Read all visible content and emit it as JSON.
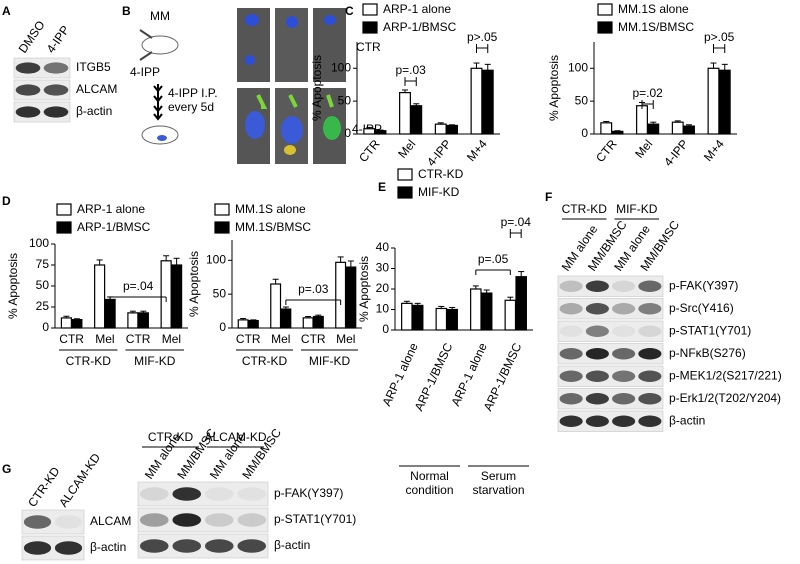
{
  "panel_labels": [
    "A",
    "B",
    "C",
    "D",
    "E",
    "F",
    "G"
  ],
  "blot_A": {
    "columns": [
      "DMSO",
      "4-IPP"
    ],
    "rows": [
      "ITGB5",
      "ALCAM",
      "β-actin"
    ]
  },
  "schematic_B": {
    "labels": [
      "MM",
      "4-IPP",
      "4-IPP I.P.",
      "every 5d"
    ],
    "rows": [
      "CTR",
      "4-IPP"
    ]
  },
  "blot_F": {
    "groups": [
      "CTR-KD",
      "MIF-KD"
    ],
    "columns": [
      "MM alone",
      "MM/BMSC",
      "MM alone",
      "MM/BMSC"
    ],
    "rows": [
      "p-FAK(Y397)",
      "p-Src(Y416)",
      "p-STAT1(Y701)",
      "p-NFκB(S276)",
      "p-MEK1/2(S217/221)",
      "p-Erk1/2(T202/Y204)",
      "β-actin"
    ]
  },
  "blot_G_left": {
    "columns": [
      "CTR-KD",
      "ALCAM-KD"
    ],
    "rows": [
      "ALCAM",
      "β-actin"
    ]
  },
  "blot_G_right": {
    "groups": [
      "CTR-KD",
      "ALCAM-KD"
    ],
    "columns": [
      "MM alone",
      "MM/BMSC",
      "MM alone",
      "MM/BMSC"
    ],
    "rows": [
      "p-FAK(Y397)",
      "p-STAT1(Y701)",
      "β-actin"
    ]
  },
  "chart_data": [
    {
      "type": "bar",
      "ylabel": "% Apoptosis",
      "categories": [
        "CTR",
        "Mel",
        "4-IPP",
        "M+4"
      ],
      "series": [
        {
          "name": "ARP-1 alone",
          "color": "#ffffff",
          "values": [
            8,
            63,
            15,
            100
          ],
          "errors": [
            2,
            4,
            2,
            8
          ]
        },
        {
          "name": "ARP-1/BMSC",
          "color": "#000000",
          "values": [
            5,
            43,
            13,
            97
          ],
          "errors": [
            1,
            3,
            1,
            9
          ]
        }
      ],
      "ylim": [
        0,
        140
      ],
      "yticks": [
        0,
        50,
        100
      ],
      "annotations": [
        "p=.03",
        "p>.05"
      ]
    },
    {
      "type": "bar",
      "ylabel": "% Apoptosis",
      "categories": [
        "CTR",
        "Mel",
        "4-IPP",
        "M+4"
      ],
      "series": [
        {
          "name": "MM.1S alone",
          "color": "#ffffff",
          "values": [
            17,
            43,
            18,
            100
          ],
          "errors": [
            2,
            5,
            2,
            8
          ]
        },
        {
          "name": "MM.1S/BMSC",
          "color": "#000000",
          "values": [
            4,
            15,
            12,
            97
          ],
          "errors": [
            1,
            3,
            2,
            9
          ]
        }
      ],
      "ylim": [
        0,
        140
      ],
      "yticks": [
        0,
        50,
        100
      ],
      "annotations": [
        "p=.02",
        "p>.05"
      ]
    },
    {
      "type": "bar",
      "ylabel": "% Apoptosis",
      "categories": [
        "CTR",
        "Mel",
        "CTR",
        "Mel"
      ],
      "groups": [
        "CTR-KD",
        "MIF-KD"
      ],
      "series": [
        {
          "name": "ARP-1 alone",
          "color": "#ffffff",
          "values": [
            12,
            75,
            18,
            80
          ],
          "errors": [
            2,
            6,
            2,
            6
          ]
        },
        {
          "name": "ARP-1/BMSC",
          "color": "#000000",
          "values": [
            10,
            34,
            18,
            75
          ],
          "errors": [
            1,
            3,
            2,
            8
          ]
        }
      ],
      "ylim": [
        0,
        100
      ],
      "yticks": [
        0,
        25,
        50,
        75,
        100
      ],
      "annotations": [
        "p=.04"
      ]
    },
    {
      "type": "bar",
      "ylabel": "% Apoptosis",
      "categories": [
        "CTR",
        "Mel",
        "CTR",
        "Mel"
      ],
      "groups": [
        "CTR-KD",
        "MIF-KD"
      ],
      "series": [
        {
          "name": "MM.1S alone",
          "color": "#ffffff",
          "values": [
            12,
            65,
            15,
            97
          ],
          "errors": [
            2,
            7,
            2,
            8
          ]
        },
        {
          "name": "MM.1S/BMSC",
          "color": "#000000",
          "values": [
            11,
            28,
            17,
            90
          ],
          "errors": [
            1,
            3,
            2,
            9
          ]
        }
      ],
      "ylim": [
        0,
        130
      ],
      "yticks": [
        0,
        50,
        100
      ],
      "annotations": [
        "p=.03"
      ]
    },
    {
      "type": "bar",
      "ylabel": "% Apoptosis",
      "categories": [
        "ARP-1 alone",
        "ARP-1/BMSC",
        "ARP-1 alone",
        "ARP-1/BMSC"
      ],
      "groups": [
        "Normal condition",
        "Serum starvation"
      ],
      "series": [
        {
          "name": "CTR-KD",
          "color": "#ffffff",
          "values": [
            13,
            10.5,
            20,
            14.5
          ],
          "errors": [
            1,
            1,
            1.5,
            1.5
          ]
        },
        {
          "name": "MIF-KD",
          "color": "#000000",
          "values": [
            12,
            10,
            18,
            26
          ],
          "errors": [
            1,
            1,
            1.5,
            2.5
          ]
        }
      ],
      "ylim": [
        0,
        40
      ],
      "yticks": [
        0,
        10,
        20,
        30,
        40
      ],
      "annotations": [
        "p=.05",
        "p=.04"
      ]
    }
  ]
}
